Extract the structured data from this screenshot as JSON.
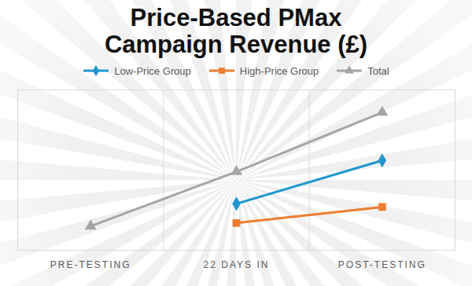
{
  "chart_data": {
    "type": "line",
    "title": "Price-Based PMax Campaign Revenue (£)",
    "categories": [
      "PRE-TESTING",
      "22 DAYS IN",
      "POST-TESTING"
    ],
    "series": [
      {
        "name": "Low-Price Group",
        "color": "#2196cf",
        "marker": "diamond",
        "values": [
          null,
          29,
          56
        ]
      },
      {
        "name": "High-Price Group",
        "color": "#ed7d31",
        "marker": "square",
        "values": [
          null,
          17,
          27
        ]
      },
      {
        "name": "Total",
        "color": "#a5a5a5",
        "marker": "triangle",
        "values": [
          15,
          49,
          86
        ]
      }
    ],
    "ylim": [
      0,
      100
    ],
    "grid": true,
    "tick_labels": "x",
    "legend": "top"
  }
}
